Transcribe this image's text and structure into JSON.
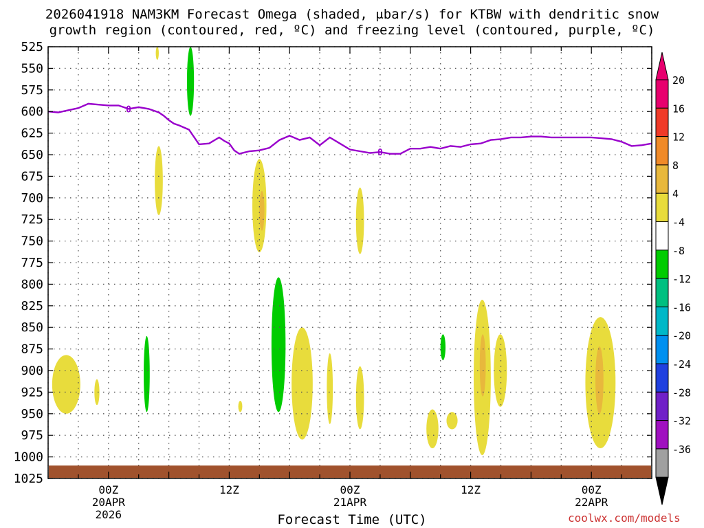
{
  "title_line1": "2026041918 NAM3KM Forecast Omega (shaded, μbar/s) for KTBW with dendritic snow",
  "title_line2": "growth region (contoured, red, ºC) and freezing level (contoured, purple, ºC)",
  "credit": "coolwx.com/models",
  "chart_data": {
    "type": "time-height cross section",
    "xlabel": "Forecast Time (UTC)",
    "x_ticks": [
      {
        "h": 6,
        "lines": [
          "00Z",
          "20APR",
          "2026"
        ]
      },
      {
        "h": 18,
        "lines": [
          "12Z"
        ]
      },
      {
        "h": 30,
        "lines": [
          "00Z",
          "21APR"
        ]
      },
      {
        "h": 42,
        "lines": [
          "12Z"
        ]
      },
      {
        "h": 54,
        "lines": [
          "00Z",
          "22APR"
        ]
      }
    ],
    "xlim": [
      0,
      60
    ],
    "y_axis": {
      "unit": "hPa",
      "ylim": [
        1025,
        525
      ],
      "ticks": [
        525,
        550,
        575,
        600,
        625,
        650,
        675,
        700,
        725,
        750,
        775,
        800,
        825,
        850,
        875,
        900,
        925,
        950,
        975,
        1000,
        1025
      ]
    },
    "grid": true,
    "colorbar": {
      "unit": "μbar/s",
      "levels": [
        {
          "label": "20",
          "color": "#e8006e"
        },
        {
          "label": "16",
          "color": "#f03a28"
        },
        {
          "label": "12",
          "color": "#f08a28"
        },
        {
          "label": "8",
          "color": "#e8b83c"
        },
        {
          "label": "4",
          "color": "#e8dc3c"
        },
        {
          "label": "-4",
          "color": "#ffffff"
        },
        {
          "label": "-8",
          "color": "#00cc00"
        },
        {
          "label": "-12",
          "color": "#00c080"
        },
        {
          "label": "-16",
          "color": "#00b8c8"
        },
        {
          "label": "-20",
          "color": "#0090f0"
        },
        {
          "label": "-24",
          "color": "#2040e0"
        },
        {
          "label": "-28",
          "color": "#7020c8"
        },
        {
          "label": "-32",
          "color": "#a010c0"
        },
        {
          "label": "-36",
          "color": "#a0a0a0"
        }
      ],
      "below_color": "#000000",
      "above_color": "#e8006e"
    },
    "freezing_level": {
      "label": "0",
      "color": "#9900cc",
      "points": [
        [
          0,
          600
        ],
        [
          1,
          601
        ],
        [
          3,
          596
        ],
        [
          4,
          591
        ],
        [
          5,
          592
        ],
        [
          6,
          593
        ],
        [
          7,
          593
        ],
        [
          8,
          597
        ],
        [
          9,
          595
        ],
        [
          10,
          597
        ],
        [
          11,
          601
        ],
        [
          11.5,
          605
        ],
        [
          12,
          610
        ],
        [
          12.5,
          614
        ],
        [
          13,
          616
        ],
        [
          14,
          621
        ],
        [
          15,
          638
        ],
        [
          16,
          637
        ],
        [
          17,
          630
        ],
        [
          17.5,
          634
        ],
        [
          18,
          637
        ],
        [
          18.5,
          645
        ],
        [
          19,
          649
        ],
        [
          20,
          646
        ],
        [
          21,
          645
        ],
        [
          22,
          642
        ],
        [
          23,
          633
        ],
        [
          24,
          628
        ],
        [
          25,
          633
        ],
        [
          26,
          630
        ],
        [
          27,
          639
        ],
        [
          28,
          630
        ],
        [
          29,
          637
        ],
        [
          30,
          644
        ],
        [
          31,
          646
        ],
        [
          32,
          648
        ],
        [
          33,
          647
        ],
        [
          34,
          649
        ],
        [
          35,
          649
        ],
        [
          36,
          643
        ],
        [
          37,
          643
        ],
        [
          38,
          641
        ],
        [
          39,
          643
        ],
        [
          40,
          640
        ],
        [
          41,
          641
        ],
        [
          42,
          638
        ],
        [
          43,
          637
        ],
        [
          44,
          633
        ],
        [
          45,
          632
        ],
        [
          46,
          630
        ],
        [
          47,
          630
        ],
        [
          48,
          629
        ],
        [
          49,
          629
        ],
        [
          50,
          630
        ],
        [
          51,
          630
        ],
        [
          52,
          630
        ],
        [
          53,
          630
        ],
        [
          54,
          630
        ],
        [
          55,
          631
        ],
        [
          56,
          632
        ],
        [
          57,
          635
        ],
        [
          58,
          640
        ],
        [
          59,
          639
        ],
        [
          60,
          637
        ]
      ]
    },
    "omega_regions": [
      {
        "color": "#e8dc3c",
        "h_range": [
          0.4,
          3.2
        ],
        "p_range": [
          882,
          950
        ]
      },
      {
        "color": "#e8dc3c",
        "h_range": [
          4.6,
          5.1
        ],
        "p_range": [
          910,
          940
        ]
      },
      {
        "color": "#00cc00",
        "h_range": [
          9.5,
          10.1
        ],
        "p_range": [
          860,
          948
        ]
      },
      {
        "color": "#e8dc3c",
        "h_range": [
          10.6,
          11.4
        ],
        "p_range": [
          640,
          720
        ]
      },
      {
        "color": "#00cc00",
        "h_range": [
          13.8,
          14.5
        ],
        "p_range": [
          525,
          605
        ]
      },
      {
        "color": "#e8dc3c",
        "h_range": [
          10.7,
          11.0
        ],
        "p_range": [
          525,
          540
        ]
      },
      {
        "color": "#e8dc3c",
        "h_range": [
          18.9,
          19.3
        ],
        "p_range": [
          935,
          948
        ]
      },
      {
        "color": "#e8dc3c",
        "h_range": [
          20.3,
          21.7
        ],
        "p_range": [
          655,
          763
        ]
      },
      {
        "color": "#00cc00",
        "h_range": [
          22.2,
          23.6
        ],
        "p_range": [
          792,
          948
        ]
      },
      {
        "color": "#e8dc3c",
        "h_range": [
          24.2,
          26.3
        ],
        "p_range": [
          850,
          980
        ]
      },
      {
        "color": "#e8dc3c",
        "h_range": [
          27.7,
          28.3
        ],
        "p_range": [
          880,
          962
        ]
      },
      {
        "color": "#e8dc3c",
        "h_range": [
          30.6,
          31.4
        ],
        "p_range": [
          688,
          765
        ]
      },
      {
        "color": "#e8dc3c",
        "h_range": [
          30.6,
          31.4
        ],
        "p_range": [
          895,
          968
        ]
      },
      {
        "color": "#e8dc3c",
        "h_range": [
          37.6,
          38.8
        ],
        "p_range": [
          945,
          990
        ]
      },
      {
        "color": "#00cc00",
        "h_range": [
          39.0,
          39.5
        ],
        "p_range": [
          858,
          888
        ]
      },
      {
        "color": "#e8dc3c",
        "h_range": [
          39.6,
          40.7
        ],
        "p_range": [
          948,
          968
        ]
      },
      {
        "color": "#e8dc3c",
        "h_range": [
          42.3,
          44.0
        ],
        "p_range": [
          818,
          998
        ]
      },
      {
        "color": "#e8dc3c",
        "h_range": [
          44.3,
          45.6
        ],
        "p_range": [
          858,
          942
        ]
      },
      {
        "color": "#e8dc3c",
        "h_range": [
          53.4,
          56.4
        ],
        "p_range": [
          838,
          990
        ]
      }
    ],
    "omega_cores": [
      {
        "color": "#e8b83c",
        "h_range": [
          21.0,
          21.5
        ],
        "p_range": [
          692,
          738
        ]
      },
      {
        "color": "#e8b83c",
        "h_range": [
          42.9,
          43.5
        ],
        "p_range": [
          858,
          930
        ]
      },
      {
        "color": "#e8b83c",
        "h_range": [
          54.4,
          55.2
        ],
        "p_range": [
          872,
          950
        ]
      }
    ],
    "surface_terrain": {
      "color": "#a0522d",
      "top_p": 1010,
      "bottom_p": 1025
    }
  }
}
